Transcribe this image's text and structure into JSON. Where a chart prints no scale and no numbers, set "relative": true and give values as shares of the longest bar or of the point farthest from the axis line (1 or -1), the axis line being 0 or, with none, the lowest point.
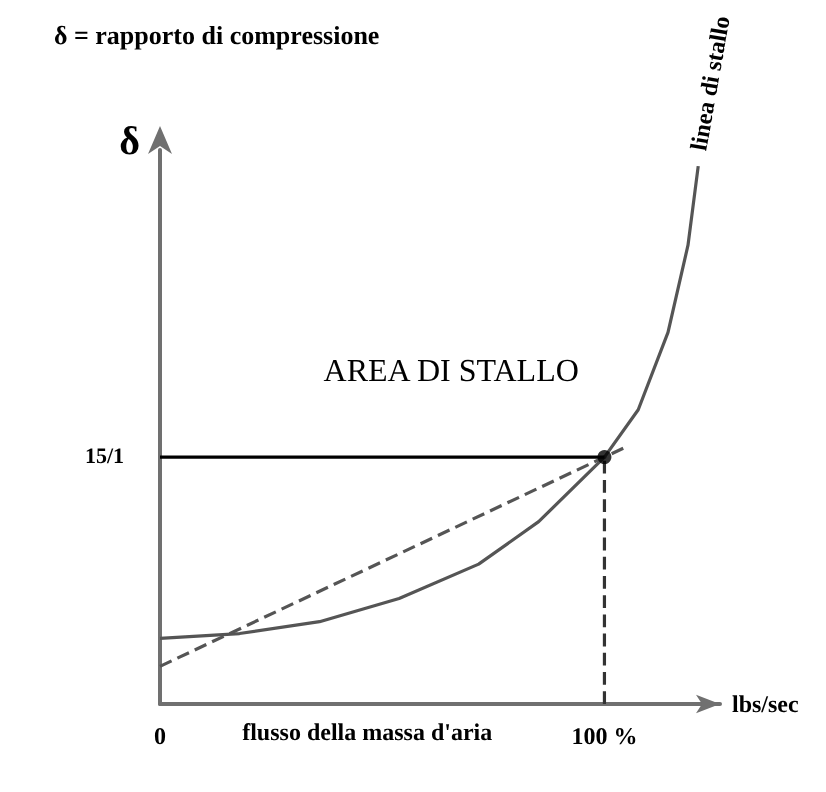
{
  "chart_data": {
    "type": "line",
    "title": "δ = rapporto di compressione",
    "ylabel": "δ",
    "xlabel": "lbs/sec",
    "relative": true,
    "annotations": [
      "AREA DI STALLO",
      "flusso della massa d'aria",
      {
        "text": "15/1",
        "x": 0,
        "y": 0.459
      }
    ],
    "xlim": [
      0,
      126
    ],
    "xticks": [
      {
        "value": 0,
        "label": "0"
      },
      {
        "value": 100,
        "label": "100 %"
      }
    ],
    "grid": false,
    "legend": false,
    "series": [
      {
        "name": "linea di stallo",
        "color": "#555555",
        "x": [
          0,
          17.9,
          35.9,
          53.8,
          71.7,
          85.2,
          100,
          107.6,
          114.3,
          118.8,
          121.1
        ],
        "values": [
          0.122,
          0.131,
          0.153,
          0.196,
          0.26,
          0.339,
          0.459,
          0.547,
          0.691,
          0.853,
          1
        ]
      },
      {
        "line_style": "dashed",
        "color": "#555555",
        "x": [
          0,
          105.4
        ],
        "values": [
          0.07,
          0.48
        ]
      },
      {
        "color": "#000000",
        "x": [
          0,
          100
        ],
        "values": [
          0.459,
          0.459
        ]
      },
      {
        "line_style": "dashed",
        "color": "#333333",
        "x": [
          100,
          100
        ],
        "values": [
          0,
          0.459
        ]
      },
      {
        "type": "scatter",
        "marker": "circle",
        "color": "#000000",
        "x": [
          100
        ],
        "values": [
          0.459
        ]
      }
    ]
  }
}
